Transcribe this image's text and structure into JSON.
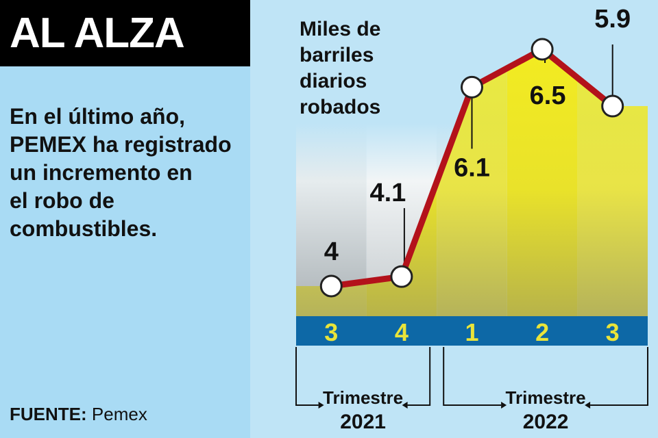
{
  "header": {
    "title": "AL ALZA"
  },
  "description": [
    "En el último año,",
    "PEMEX ha registrado",
    "un incremento en",
    "el robo de",
    "combustibles."
  ],
  "source": {
    "label": "FUENTE:",
    "value": "Pemex"
  },
  "chart_data": {
    "type": "line",
    "y_label": [
      "Miles de",
      "barriles",
      "diarios",
      "robados"
    ],
    "categories": [
      "3",
      "4",
      "1",
      "2",
      "3"
    ],
    "values": [
      4,
      4.1,
      6.1,
      6.5,
      5.9
    ],
    "color": "#b3121b",
    "groups": [
      {
        "label": "Trimestre",
        "year": "2021"
      },
      {
        "label": "Trimestre",
        "year": "2022"
      }
    ]
  }
}
